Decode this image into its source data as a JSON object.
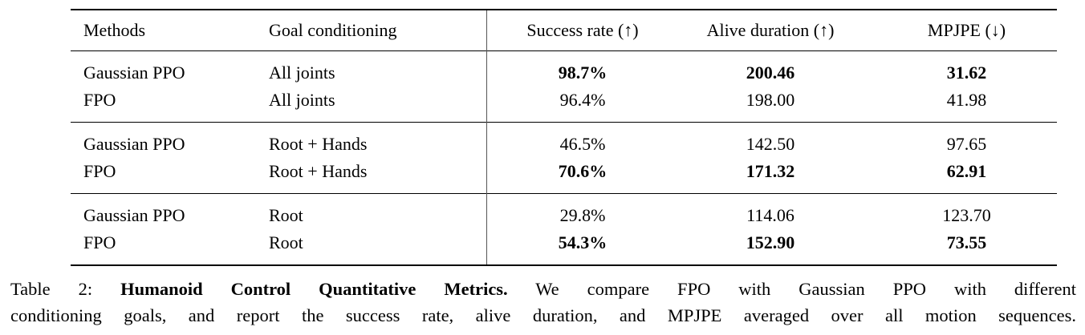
{
  "page": {
    "background": "#ffffff",
    "text_color": "#000000",
    "rule_color": "#000000",
    "divider_color": "#555555"
  },
  "table": {
    "columns": [
      {
        "key": "method",
        "label": "Methods"
      },
      {
        "key": "goal",
        "label": "Goal conditioning"
      },
      {
        "key": "success",
        "label": "Success rate (↑)"
      },
      {
        "key": "alive",
        "label": "Alive duration (↑)"
      },
      {
        "key": "mpjpe",
        "label": "MPJPE (↓)"
      }
    ],
    "groups": [
      {
        "rows": [
          {
            "method": "Gaussian PPO",
            "goal": "All joints",
            "success": "98.7%",
            "alive": "200.46",
            "mpjpe": "31.62"
          },
          {
            "method": "FPO",
            "goal": "All joints",
            "success": "96.4%",
            "alive": "198.00",
            "mpjpe": "41.98"
          }
        ]
      },
      {
        "rows": [
          {
            "method": "Gaussian PPO",
            "goal": "Root + Hands",
            "success": "46.5%",
            "alive": "142.50",
            "mpjpe": "97.65"
          },
          {
            "method": "FPO",
            "goal": "Root + Hands",
            "success": "70.6%",
            "alive": "171.32",
            "mpjpe": "62.91"
          }
        ]
      },
      {
        "rows": [
          {
            "method": "Gaussian PPO",
            "goal": "Root",
            "success": "29.8%",
            "alive": "114.06",
            "mpjpe": "123.70"
          },
          {
            "method": "FPO",
            "goal": "Root",
            "success": "54.3%",
            "alive": "152.90",
            "mpjpe": "73.55"
          }
        ]
      }
    ]
  },
  "caption": {
    "label": "Table 2:",
    "title_bold": "Humanoid Control Quantitative Metrics.",
    "line1_rest": "We compare FPO with Gaussian PPO with different",
    "line2": "conditioning goals, and report the success rate, alive duration, and MPJPE averaged over all motion sequences."
  }
}
